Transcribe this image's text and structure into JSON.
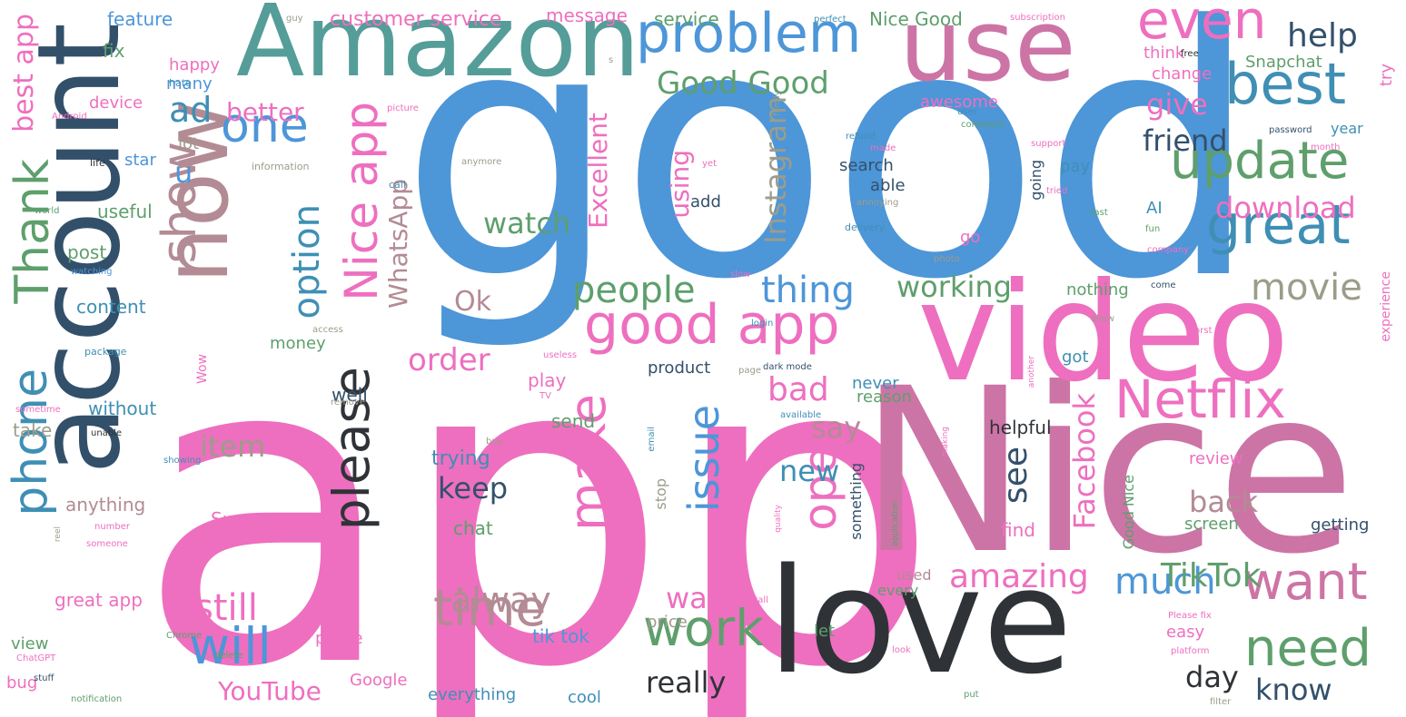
{
  "colors": {
    "pink": "#ee6fbf",
    "rose": "#cd74a6",
    "mauve": "#b38b94",
    "navy": "#33506b",
    "blue": "#4d96d8",
    "teal": "#559d98",
    "green": "#5e9f6c",
    "dark": "#2f3338",
    "steel": "#3f8fb5",
    "gray": "#9c9c8a"
  },
  "words": [
    {
      "text": "app",
      "size": 470,
      "color": "pink",
      "rot": 0
    },
    {
      "text": "good",
      "size": 380,
      "color": "blue",
      "rot": 0
    },
    {
      "text": "Nice",
      "size": 250,
      "color": "rose",
      "rot": 0
    },
    {
      "text": "video",
      "size": 150,
      "color": "pink",
      "rot": 0
    },
    {
      "text": "love",
      "size": 160,
      "color": "dark",
      "rot": 0
    },
    {
      "text": "account",
      "size": 125,
      "color": "navy",
      "rot": 1
    },
    {
      "text": "Amazon",
      "size": 110,
      "color": "teal",
      "rot": 0
    },
    {
      "text": "use",
      "size": 110,
      "color": "rose",
      "rot": 0
    },
    {
      "text": "now",
      "size": 98,
      "color": "mauve",
      "rot": 1
    },
    {
      "text": "problem",
      "size": 60,
      "color": "blue",
      "rot": 0
    },
    {
      "text": "even",
      "size": 58,
      "color": "pink",
      "rot": 0
    },
    {
      "text": "best",
      "size": 62,
      "color": "steel",
      "rot": 0
    },
    {
      "text": "update",
      "size": 56,
      "color": "green",
      "rot": 0
    },
    {
      "text": "great",
      "size": 60,
      "color": "steel",
      "rot": 0
    },
    {
      "text": "Netflix",
      "size": 58,
      "color": "pink",
      "rot": 0
    },
    {
      "text": "want",
      "size": 56,
      "color": "rose",
      "rot": 0
    },
    {
      "text": "need",
      "size": 56,
      "color": "green",
      "rot": 0
    },
    {
      "text": "one",
      "size": 52,
      "color": "blue",
      "rot": 0
    },
    {
      "text": "show",
      "size": 52,
      "color": "mauve",
      "rot": 1
    },
    {
      "text": "Thank",
      "size": 52,
      "color": "green",
      "rot": 1
    },
    {
      "text": "phone",
      "size": 52,
      "color": "steel",
      "rot": 1
    },
    {
      "text": "Nice app",
      "size": 50,
      "color": "pink",
      "rot": 1
    },
    {
      "text": "please",
      "size": 55,
      "color": "dark",
      "rot": 1
    },
    {
      "text": "make",
      "size": 55,
      "color": "pink",
      "rot": 1
    },
    {
      "text": "good app",
      "size": 60,
      "color": "pink",
      "rot": 0
    },
    {
      "text": "time",
      "size": 55,
      "color": "mauve",
      "rot": 0
    },
    {
      "text": "will",
      "size": 55,
      "color": "blue",
      "rot": 0
    },
    {
      "text": "work",
      "size": 55,
      "color": "green",
      "rot": 0
    },
    {
      "text": "open",
      "size": 50,
      "color": "pink",
      "rot": 1
    },
    {
      "text": "issue",
      "size": 46,
      "color": "blue",
      "rot": 1
    },
    {
      "text": "people",
      "size": 40,
      "color": "green",
      "rot": 0
    },
    {
      "text": "thing",
      "size": 40,
      "color": "blue",
      "rot": 0
    },
    {
      "text": "movie",
      "size": 40,
      "color": "gray",
      "rot": 0
    },
    {
      "text": "option",
      "size": 40,
      "color": "steel",
      "rot": 1
    },
    {
      "text": "still",
      "size": 40,
      "color": "pink",
      "rot": 0
    },
    {
      "text": "alway",
      "size": 38,
      "color": "mauve",
      "rot": 0
    },
    {
      "text": "amazing",
      "size": 36,
      "color": "pink",
      "rot": 0
    },
    {
      "text": "much",
      "size": 40,
      "color": "blue",
      "rot": 0
    },
    {
      "text": "TikTok",
      "size": 36,
      "color": "green",
      "rot": 0
    },
    {
      "text": "Facebook",
      "size": 32,
      "color": "pink",
      "rot": 1
    },
    {
      "text": "Instagram",
      "size": 32,
      "color": "gray",
      "rot": 1
    },
    {
      "text": "Excellent",
      "size": 28,
      "color": "pink",
      "rot": 1
    },
    {
      "text": "WhatsApp",
      "size": 28,
      "color": "mauve",
      "rot": 1
    },
    {
      "text": "Good Good",
      "size": 34,
      "color": "green",
      "rot": 0
    },
    {
      "text": "help",
      "size": 36,
      "color": "navy",
      "rot": 0
    },
    {
      "text": "ad",
      "size": 38,
      "color": "steel",
      "rot": 0
    },
    {
      "text": "u",
      "size": 32,
      "color": "blue",
      "rot": 0
    },
    {
      "text": "best app",
      "size": 30,
      "color": "pink",
      "rot": 1
    },
    {
      "text": "better",
      "size": 28,
      "color": "pink",
      "rot": 0
    },
    {
      "text": "give",
      "size": 32,
      "color": "pink",
      "rot": 0
    },
    {
      "text": "friend",
      "size": 32,
      "color": "navy",
      "rot": 0
    },
    {
      "text": "download",
      "size": 32,
      "color": "pink",
      "rot": 0
    },
    {
      "text": "watch",
      "size": 32,
      "color": "green",
      "rot": 0
    },
    {
      "text": "working",
      "size": 32,
      "color": "green",
      "rot": 0
    },
    {
      "text": "Ok",
      "size": 30,
      "color": "mauve",
      "rot": 0
    },
    {
      "text": "order",
      "size": 34,
      "color": "pink",
      "rot": 0
    },
    {
      "text": "bad",
      "size": 36,
      "color": "pink",
      "rot": 0
    },
    {
      "text": "say",
      "size": 32,
      "color": "mauve",
      "rot": 0
    },
    {
      "text": "new",
      "size": 32,
      "color": "steel",
      "rot": 0
    },
    {
      "text": "item",
      "size": 32,
      "color": "gray",
      "rot": 0
    },
    {
      "text": "keep",
      "size": 32,
      "color": "navy",
      "rot": 0
    },
    {
      "text": "way",
      "size": 32,
      "color": "pink",
      "rot": 0
    },
    {
      "text": "see",
      "size": 36,
      "color": "navy",
      "rot": 1
    },
    {
      "text": "back",
      "size": 32,
      "color": "mauve",
      "rot": 0
    },
    {
      "text": "really",
      "size": 32,
      "color": "dark",
      "rot": 0
    },
    {
      "text": "day",
      "size": 32,
      "color": "dark",
      "rot": 0
    },
    {
      "text": "know",
      "size": 32,
      "color": "navy",
      "rot": 0
    },
    {
      "text": "YouTube",
      "size": 28,
      "color": "pink",
      "rot": 0
    },
    {
      "text": "using",
      "size": 28,
      "color": "pink",
      "rot": 1
    },
    {
      "text": "customer service",
      "size": 22,
      "color": "pink",
      "rot": 0
    },
    {
      "text": "message",
      "size": 20,
      "color": "pink",
      "rot": 0
    },
    {
      "text": "service",
      "size": 20,
      "color": "green",
      "rot": 0
    },
    {
      "text": "Nice Good",
      "size": 20,
      "color": "green",
      "rot": 0
    },
    {
      "text": "feature",
      "size": 20,
      "color": "blue",
      "rot": 0
    },
    {
      "text": "fix",
      "size": 20,
      "color": "green",
      "rot": 0
    },
    {
      "text": "happy",
      "size": 18,
      "color": "pink",
      "rot": 0
    },
    {
      "text": "many",
      "size": 18,
      "color": "blue",
      "rot": 0
    },
    {
      "text": "device",
      "size": 18,
      "color": "pink",
      "rot": 0
    },
    {
      "text": "lot",
      "size": 18,
      "color": "gray",
      "rot": 0
    },
    {
      "text": "star",
      "size": 18,
      "color": "blue",
      "rot": 0
    },
    {
      "text": "useful",
      "size": 20,
      "color": "green",
      "rot": 0
    },
    {
      "text": "post",
      "size": 20,
      "color": "green",
      "rot": 0
    },
    {
      "text": "content",
      "size": 20,
      "color": "steel",
      "rot": 0
    },
    {
      "text": "money",
      "size": 18,
      "color": "green",
      "rot": 0
    },
    {
      "text": "without",
      "size": 20,
      "color": "steel",
      "rot": 0
    },
    {
      "text": "take",
      "size": 20,
      "color": "gray",
      "rot": 0
    },
    {
      "text": "anything",
      "size": 20,
      "color": "mauve",
      "rot": 0
    },
    {
      "text": "Super",
      "size": 20,
      "color": "pink",
      "rot": 0
    },
    {
      "text": "chat",
      "size": 20,
      "color": "green",
      "rot": 0
    },
    {
      "text": "great app",
      "size": 20,
      "color": "pink",
      "rot": 0
    },
    {
      "text": "view",
      "size": 18,
      "color": "green",
      "rot": 0
    },
    {
      "text": "bug",
      "size": 18,
      "color": "pink",
      "rot": 0
    },
    {
      "text": "prime",
      "size": 18,
      "color": "pink",
      "rot": 0
    },
    {
      "text": "Google",
      "size": 18,
      "color": "pink",
      "rot": 0
    },
    {
      "text": "tik tok",
      "size": 20,
      "color": "blue",
      "rot": 0
    },
    {
      "text": "price",
      "size": 18,
      "color": "gray",
      "rot": 0
    },
    {
      "text": "everything",
      "size": 18,
      "color": "steel",
      "rot": 0
    },
    {
      "text": "cool",
      "size": 18,
      "color": "steel",
      "rot": 0
    },
    {
      "text": "trying",
      "size": 22,
      "color": "steel",
      "rot": 0
    },
    {
      "text": "send",
      "size": 20,
      "color": "green",
      "rot": 0
    },
    {
      "text": "play",
      "size": 20,
      "color": "pink",
      "rot": 0
    },
    {
      "text": "product",
      "size": 18,
      "color": "navy",
      "rot": 0
    },
    {
      "text": "well",
      "size": 20,
      "color": "navy",
      "rot": 0
    },
    {
      "text": "never",
      "size": 18,
      "color": "steel",
      "rot": 0
    },
    {
      "text": "reason",
      "size": 18,
      "color": "green",
      "rot": 0
    },
    {
      "text": "helpful",
      "size": 20,
      "color": "dark",
      "rot": 0
    },
    {
      "text": "find",
      "size": 20,
      "color": "pink",
      "rot": 0
    },
    {
      "text": "used",
      "size": 16,
      "color": "mauve",
      "rot": 0
    },
    {
      "text": "every",
      "size": 16,
      "color": "green",
      "rot": 0
    },
    {
      "text": "let",
      "size": 18,
      "color": "green",
      "rot": 0
    },
    {
      "text": "search",
      "size": 18,
      "color": "navy",
      "rot": 0
    },
    {
      "text": "able",
      "size": 18,
      "color": "navy",
      "rot": 0
    },
    {
      "text": "add",
      "size": 18,
      "color": "navy",
      "rot": 0
    },
    {
      "text": "awesome",
      "size": 18,
      "color": "pink",
      "rot": 0
    },
    {
      "text": "think",
      "size": 18,
      "color": "pink",
      "rot": 0
    },
    {
      "text": "change",
      "size": 18,
      "color": "pink",
      "rot": 0
    },
    {
      "text": "Snapchat",
      "size": 18,
      "color": "green",
      "rot": 0
    },
    {
      "text": "try",
      "size": 18,
      "color": "pink",
      "rot": 1
    },
    {
      "text": "year",
      "size": 16,
      "color": "steel",
      "rot": 0
    },
    {
      "text": "pay",
      "size": 18,
      "color": "steel",
      "rot": 0
    },
    {
      "text": "AI",
      "size": 18,
      "color": "steel",
      "rot": 0
    },
    {
      "text": "going",
      "size": 16,
      "color": "navy",
      "rot": 1
    },
    {
      "text": "go",
      "size": 18,
      "color": "pink",
      "rot": 0
    },
    {
      "text": "nothing",
      "size": 18,
      "color": "green",
      "rot": 0
    },
    {
      "text": "got",
      "size": 18,
      "color": "steel",
      "rot": 0
    },
    {
      "text": "review",
      "size": 18,
      "color": "pink",
      "rot": 0
    },
    {
      "text": "screen",
      "size": 18,
      "color": "green",
      "rot": 0
    },
    {
      "text": "getting",
      "size": 18,
      "color": "navy",
      "rot": 0
    },
    {
      "text": "easy",
      "size": 18,
      "color": "pink",
      "rot": 0
    },
    {
      "text": "experience",
      "size": 14,
      "color": "pink",
      "rot": 1
    },
    {
      "text": "Good Nice",
      "size": 16,
      "color": "green",
      "rot": 1
    },
    {
      "text": "something",
      "size": 16,
      "color": "navy",
      "rot": 1
    },
    {
      "text": "stop",
      "size": 16,
      "color": "gray",
      "rot": 1
    },
    {
      "text": "Wow",
      "size": 14,
      "color": "pink",
      "rot": 1
    },
    {
      "text": "hate",
      "size": 11,
      "color": "steel",
      "rot": 0
    },
    {
      "text": "Android",
      "size": 10,
      "color": "pink",
      "rot": 0
    },
    {
      "text": "life",
      "size": 11,
      "color": "dark",
      "rot": 0
    },
    {
      "text": "information",
      "size": 11,
      "color": "gray",
      "rot": 0
    },
    {
      "text": "call",
      "size": 11,
      "color": "steel",
      "rot": 0
    },
    {
      "text": "world",
      "size": 10,
      "color": "green",
      "rot": 0
    },
    {
      "text": "watching",
      "size": 10,
      "color": "blue",
      "rot": 0
    },
    {
      "text": "access",
      "size": 10,
      "color": "gray",
      "rot": 0
    },
    {
      "text": "package",
      "size": 11,
      "color": "steel",
      "rot": 0
    },
    {
      "text": "remove",
      "size": 10,
      "color": "gray",
      "rot": 0
    },
    {
      "text": "sometime",
      "size": 10,
      "color": "pink",
      "rot": 0
    },
    {
      "text": "unable",
      "size": 10,
      "color": "dark",
      "rot": 0
    },
    {
      "text": "showing",
      "size": 10,
      "color": "steel",
      "rot": 0
    },
    {
      "text": "number",
      "size": 10,
      "color": "pink",
      "rot": 0
    },
    {
      "text": "someone",
      "size": 10,
      "color": "pink",
      "rot": 0
    },
    {
      "text": "ChatGPT",
      "size": 10,
      "color": "pink",
      "rot": 0
    },
    {
      "text": "stuff",
      "size": 10,
      "color": "navy",
      "rot": 0
    },
    {
      "text": "Chrome",
      "size": 10,
      "color": "green",
      "rot": 0
    },
    {
      "text": "delete",
      "size": 10,
      "color": "green",
      "rot": 0
    },
    {
      "text": "notification",
      "size": 10,
      "color": "green",
      "rot": 0
    },
    {
      "text": "guy",
      "size": 10,
      "color": "gray",
      "rot": 0
    },
    {
      "text": "picture",
      "size": 10,
      "color": "pink",
      "rot": 0
    },
    {
      "text": "perfect",
      "size": 10,
      "color": "steel",
      "rot": 0
    },
    {
      "text": "subscription",
      "size": 10,
      "color": "pink",
      "rot": 0
    },
    {
      "text": "free",
      "size": 10,
      "color": "dark",
      "rot": 0
    },
    {
      "text": "family",
      "size": 9,
      "color": "gray",
      "rot": 1
    },
    {
      "text": "user",
      "size": 10,
      "color": "steel",
      "rot": 0
    },
    {
      "text": "comment",
      "size": 10,
      "color": "green",
      "rot": 0
    },
    {
      "text": "refund",
      "size": 10,
      "color": "steel",
      "rot": 0
    },
    {
      "text": "made",
      "size": 10,
      "color": "pink",
      "rot": 0
    },
    {
      "text": "yet",
      "size": 10,
      "color": "pink",
      "rot": 0
    },
    {
      "text": "support",
      "size": 10,
      "color": "pink",
      "rot": 0
    },
    {
      "text": "password",
      "size": 10,
      "color": "navy",
      "rot": 0
    },
    {
      "text": "month",
      "size": 10,
      "color": "pink",
      "rot": 0
    },
    {
      "text": "anymore",
      "size": 10,
      "color": "gray",
      "rot": 0
    },
    {
      "text": "tried",
      "size": 10,
      "color": "pink",
      "rot": 0
    },
    {
      "text": "fast",
      "size": 10,
      "color": "green",
      "rot": 0
    },
    {
      "text": "annoying",
      "size": 10,
      "color": "gray",
      "rot": 0
    },
    {
      "text": "delivery",
      "size": 11,
      "color": "steel",
      "rot": 0
    },
    {
      "text": "fun",
      "size": 10,
      "color": "green",
      "rot": 0
    },
    {
      "text": "company",
      "size": 10,
      "color": "pink",
      "rot": 0
    },
    {
      "text": "photo",
      "size": 10,
      "color": "gray",
      "rot": 0
    },
    {
      "text": "come",
      "size": 10,
      "color": "navy",
      "rot": 0
    },
    {
      "text": "slow",
      "size": 10,
      "color": "pink",
      "rot": 0
    },
    {
      "text": "login",
      "size": 10,
      "color": "steel",
      "rot": 0
    },
    {
      "text": "allow",
      "size": 10,
      "color": "gray",
      "rot": 0
    },
    {
      "text": "useless",
      "size": 10,
      "color": "pink",
      "rot": 0
    },
    {
      "text": "worst",
      "size": 10,
      "color": "pink",
      "rot": 0
    },
    {
      "text": "page",
      "size": 10,
      "color": "gray",
      "rot": 0
    },
    {
      "text": "dark mode",
      "size": 10,
      "color": "navy",
      "rot": 0
    },
    {
      "text": "another",
      "size": 9,
      "color": "pink",
      "rot": 1
    },
    {
      "text": "TV",
      "size": 10,
      "color": "pink",
      "rot": 0
    },
    {
      "text": "available",
      "size": 10,
      "color": "steel",
      "rot": 0
    },
    {
      "text": "making",
      "size": 9,
      "color": "pink",
      "rot": 1
    },
    {
      "text": "buy",
      "size": 10,
      "color": "gray",
      "rot": 0
    },
    {
      "text": "email",
      "size": 10,
      "color": "steel",
      "rot": 1
    },
    {
      "text": "quality",
      "size": 9,
      "color": "pink",
      "rot": 1
    },
    {
      "text": "reel",
      "size": 9,
      "color": "gray",
      "rot": 1
    },
    {
      "text": "install",
      "size": 10,
      "color": "pink",
      "rot": 0
    },
    {
      "text": "application",
      "size": 9,
      "color": "green",
      "rot": 1
    },
    {
      "text": "look",
      "size": 10,
      "color": "pink",
      "rot": 0
    },
    {
      "text": "Please fix",
      "size": 10,
      "color": "pink",
      "rot": 0
    },
    {
      "text": "platform",
      "size": 10,
      "color": "pink",
      "rot": 0
    },
    {
      "text": "filter",
      "size": 10,
      "color": "gray",
      "rot": 0
    },
    {
      "text": "put",
      "size": 10,
      "color": "green",
      "rot": 0
    },
    {
      "text": "s",
      "size": 10,
      "color": "gray",
      "rot": 0
    }
  ]
}
